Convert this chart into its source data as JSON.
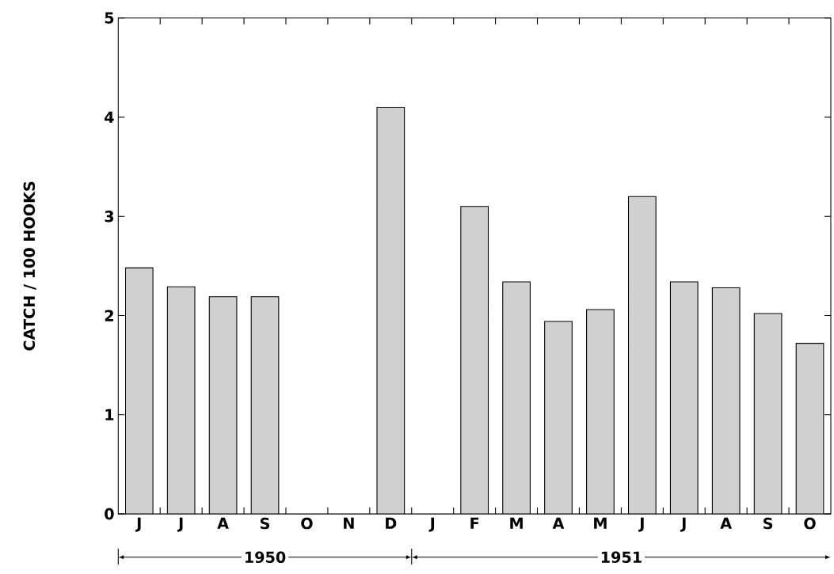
{
  "chart_data": {
    "type": "bar",
    "ylabel": "CATCH / 100 HOOKS",
    "categories": [
      "J",
      "J",
      "A",
      "S",
      "O",
      "N",
      "D",
      "J",
      "F",
      "M",
      "A",
      "M",
      "J",
      "J",
      "A",
      "S",
      "O"
    ],
    "values": [
      2.48,
      2.29,
      2.19,
      2.19,
      null,
      null,
      4.1,
      null,
      3.1,
      2.34,
      1.94,
      2.06,
      3.2,
      2.34,
      2.28,
      2.02,
      1.72
    ],
    "color": "#d0d0d0",
    "ylim": [
      0,
      5
    ],
    "yticks": [
      0,
      1,
      2,
      3,
      4,
      5
    ],
    "annotations": [
      "1950",
      "1951"
    ]
  }
}
